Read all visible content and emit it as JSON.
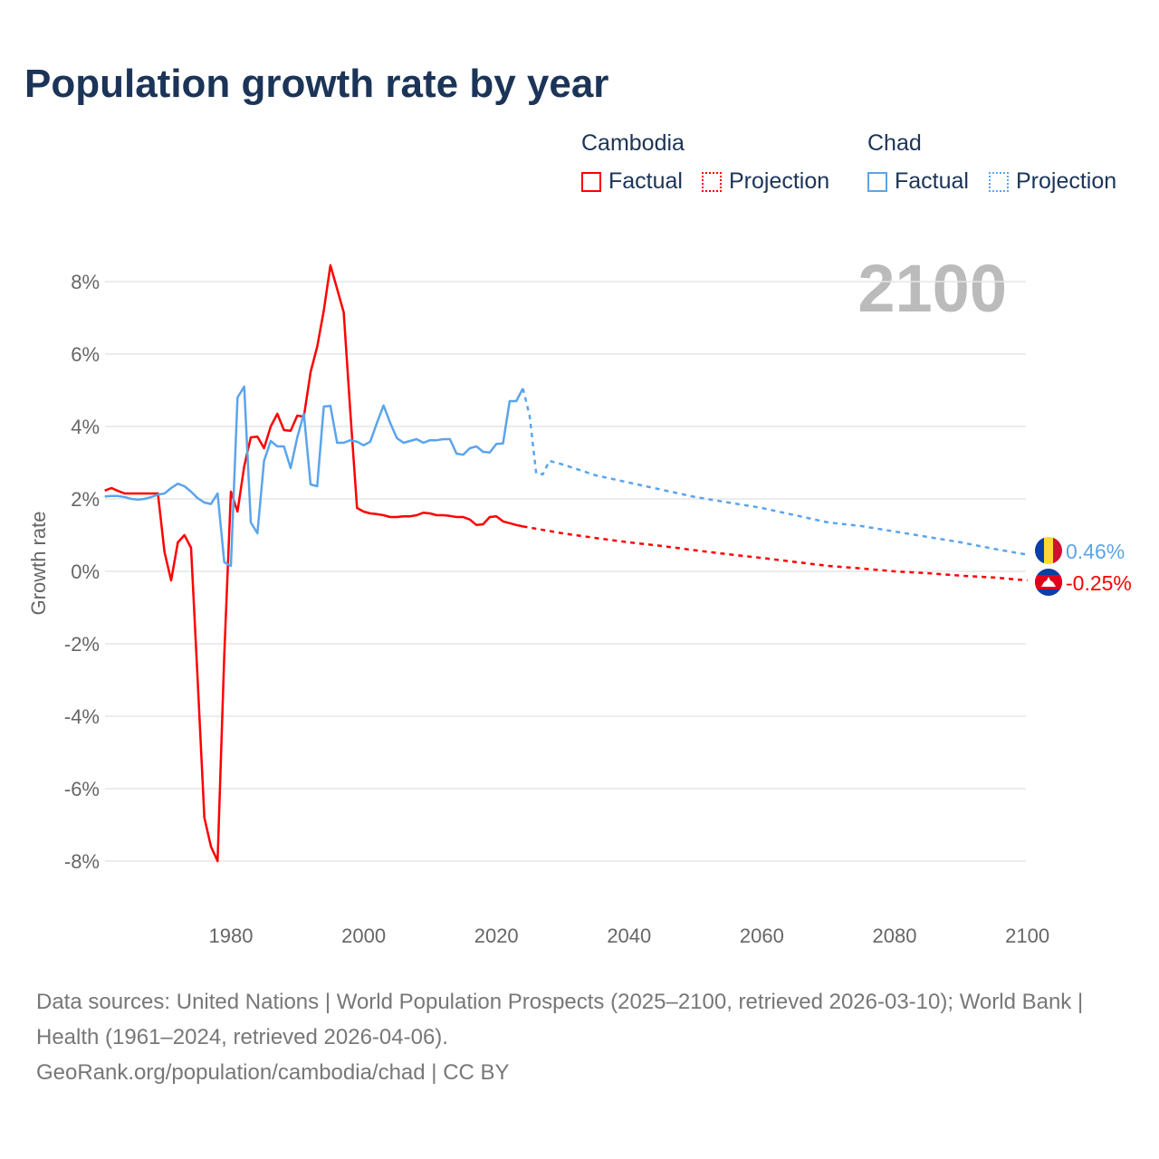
{
  "title": "Population growth rate by year",
  "year_display": "2100",
  "legend": {
    "groups": [
      {
        "name": "Cambodia",
        "factual": "Factual",
        "projection": "Projection",
        "color": "#ff0000"
      },
      {
        "name": "Chad",
        "factual": "Factual",
        "projection": "Projection",
        "color": "#5ba4ec"
      }
    ]
  },
  "footer": {
    "line1": "Data sources: United Nations | World Population Prospects (2025–2100, retrieved 2026-03-10); World Bank | Health (1961–2024, retrieved 2026-04-06).",
    "line2": "GeoRank.org/population/cambodia/chad | CC BY"
  },
  "chart_data": {
    "type": "line",
    "title": "Population growth rate by year",
    "xlabel": "",
    "ylabel": "Growth rate",
    "xlim": [
      1961,
      2100
    ],
    "ylim": [
      -9,
      9
    ],
    "yticks": [
      8,
      6,
      4,
      2,
      0,
      -2,
      -4,
      -6,
      -8
    ],
    "ytick_labels": [
      "8%",
      "6%",
      "4%",
      "2%",
      "0%",
      "-2%",
      "-4%",
      "-6%",
      "-8%"
    ],
    "xticks": [
      1980,
      2000,
      2020,
      2040,
      2060,
      2080,
      2100
    ],
    "xtick_labels": [
      "1980",
      "2000",
      "2020",
      "2040",
      "2060",
      "2080",
      "2100"
    ],
    "grid": true,
    "series": [
      {
        "name": "Cambodia",
        "kind": "factual",
        "color": "#ff0000",
        "x": [
          1961,
          1962,
          1963,
          1964,
          1965,
          1966,
          1967,
          1968,
          1969,
          1970,
          1971,
          1972,
          1973,
          1974,
          1975,
          1976,
          1977,
          1978,
          1979,
          1980,
          1981,
          1982,
          1983,
          1984,
          1985,
          1986,
          1987,
          1988,
          1989,
          1990,
          1991,
          1992,
          1993,
          1994,
          1995,
          1996,
          1997,
          1998,
          1999,
          2000,
          2001,
          2002,
          2003,
          2004,
          2005,
          2006,
          2007,
          2008,
          2009,
          2010,
          2011,
          2012,
          2013,
          2014,
          2015,
          2016,
          2017,
          2018,
          2019,
          2020,
          2021,
          2022,
          2023,
          2024
        ],
        "y": [
          2.23,
          2.3,
          2.22,
          2.15,
          2.15,
          2.15,
          2.15,
          2.15,
          2.15,
          0.53,
          -0.25,
          0.8,
          1.0,
          0.65,
          -3.0,
          -6.8,
          -7.6,
          -8.0,
          -2.3,
          2.2,
          1.65,
          2.9,
          3.7,
          3.72,
          3.4,
          4.0,
          4.35,
          3.9,
          3.88,
          4.3,
          4.27,
          5.5,
          6.2,
          7.2,
          8.45,
          7.8,
          7.15,
          4.4,
          1.75,
          1.65,
          1.6,
          1.58,
          1.55,
          1.5,
          1.5,
          1.52,
          1.52,
          1.55,
          1.62,
          1.6,
          1.55,
          1.55,
          1.53,
          1.5,
          1.5,
          1.43,
          1.28,
          1.3,
          1.5,
          1.52,
          1.38,
          1.33,
          1.28,
          1.24
        ]
      },
      {
        "name": "Cambodia",
        "kind": "projection",
        "color": "#ff0000",
        "x": [
          2024,
          2030,
          2035,
          2040,
          2045,
          2050,
          2055,
          2060,
          2065,
          2070,
          2075,
          2080,
          2085,
          2090,
          2095,
          2100
        ],
        "y": [
          1.24,
          1.05,
          0.92,
          0.8,
          0.7,
          0.58,
          0.47,
          0.37,
          0.26,
          0.15,
          0.08,
          0.0,
          -0.05,
          -0.12,
          -0.17,
          -0.25
        ]
      },
      {
        "name": "Chad",
        "kind": "factual",
        "color": "#5ba4ec",
        "x": [
          1961,
          1962,
          1963,
          1964,
          1965,
          1966,
          1967,
          1968,
          1969,
          1970,
          1971,
          1972,
          1973,
          1974,
          1975,
          1976,
          1977,
          1978,
          1979,
          1980,
          1981,
          1982,
          1983,
          1984,
          1985,
          1986,
          1987,
          1988,
          1989,
          1990,
          1991,
          1992,
          1993,
          1994,
          1995,
          1996,
          1997,
          1998,
          1999,
          2000,
          2001,
          2002,
          2003,
          2004,
          2005,
          2006,
          2007,
          2008,
          2009,
          2010,
          2011,
          2012,
          2013,
          2014,
          2015,
          2016,
          2017,
          2018,
          2019,
          2020,
          2021,
          2022,
          2023,
          2024
        ],
        "y": [
          2.07,
          2.08,
          2.08,
          2.05,
          2.0,
          1.98,
          2.0,
          2.05,
          2.12,
          2.15,
          2.3,
          2.42,
          2.35,
          2.2,
          2.02,
          1.9,
          1.86,
          2.15,
          0.25,
          0.15,
          4.8,
          5.1,
          1.35,
          1.05,
          3.05,
          3.6,
          3.45,
          3.45,
          2.85,
          3.7,
          4.35,
          2.4,
          2.35,
          4.55,
          4.57,
          3.55,
          3.55,
          3.62,
          3.58,
          3.48,
          3.58,
          4.1,
          4.58,
          4.1,
          3.68,
          3.55,
          3.6,
          3.65,
          3.55,
          3.62,
          3.62,
          3.65,
          3.65,
          3.25,
          3.22,
          3.4,
          3.45,
          3.3,
          3.28,
          3.52,
          3.53,
          4.7,
          4.7,
          5.05
        ]
      },
      {
        "name": "Chad",
        "kind": "projection",
        "color": "#5ba4ec",
        "x": [
          2024,
          2025,
          2026,
          2027,
          2028,
          2030,
          2035,
          2040,
          2045,
          2050,
          2055,
          2060,
          2065,
          2070,
          2075,
          2080,
          2085,
          2090,
          2095,
          2100
        ],
        "y": [
          5.05,
          4.3,
          2.7,
          2.68,
          3.05,
          2.95,
          2.65,
          2.45,
          2.25,
          2.05,
          1.9,
          1.75,
          1.55,
          1.35,
          1.25,
          1.1,
          0.95,
          0.8,
          0.62,
          0.46
        ]
      }
    ],
    "end_labels": [
      {
        "country": "Chad",
        "value": 0.46,
        "text": "0.46%",
        "color": "#5ba4ec"
      },
      {
        "country": "Cambodia",
        "value": -0.25,
        "text": "-0.25%",
        "color": "#ff0000"
      }
    ]
  }
}
